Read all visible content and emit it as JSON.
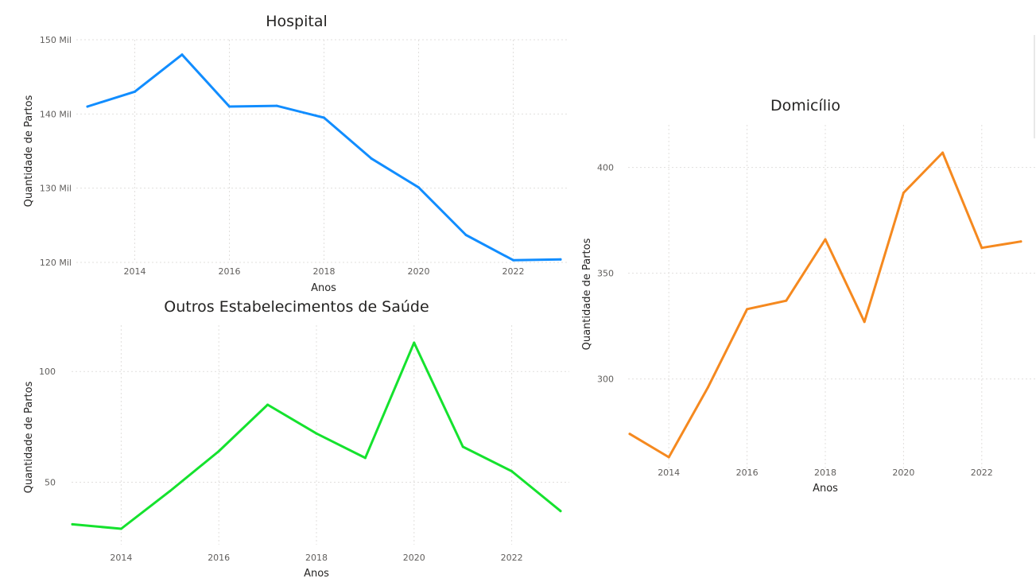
{
  "chart_data": [
    {
      "id": "hospital",
      "type": "line",
      "title": "Hospital",
      "xlabel": "Anos",
      "ylabel": "Quantidade de Partos",
      "x": [
        2013,
        2014,
        2015,
        2016,
        2017,
        2018,
        2019,
        2020,
        2021,
        2022,
        2023
      ],
      "series": [
        {
          "values": [
            141000,
            143000,
            148000,
            141000,
            141100,
            139500,
            134000,
            130100,
            123700,
            120300,
            120400
          ]
        }
      ],
      "ylim": [
        120000,
        150000
      ],
      "yticks": [
        120000,
        130000,
        140000,
        150000
      ],
      "ytick_labels": [
        "120 Mil",
        "130 Mil",
        "140 Mil",
        "150 Mil"
      ],
      "xticks": [
        2014,
        2016,
        2018,
        2020,
        2022
      ],
      "xtick_labels": [
        "2014",
        "2016",
        "2018",
        "2020",
        "2022"
      ],
      "color": "#118DFF",
      "grid": true
    },
    {
      "id": "outros",
      "type": "line",
      "title": "Outros Estabelecimentos de Saúde",
      "xlabel": "Anos",
      "ylabel": "Quantidade de Partos",
      "x": [
        2013,
        2014,
        2015,
        2016,
        2017,
        2018,
        2019,
        2020,
        2021,
        2022,
        2023
      ],
      "series": [
        {
          "values": [
            31,
            29,
            46,
            64,
            85,
            72,
            61,
            113,
            66,
            55,
            37
          ]
        }
      ],
      "ylim": [
        29,
        113
      ],
      "yticks": [
        50,
        100
      ],
      "ytick_labels": [
        "50",
        "100"
      ],
      "xticks": [
        2014,
        2016,
        2018,
        2020,
        2022
      ],
      "xtick_labels": [
        "2014",
        "2016",
        "2018",
        "2020",
        "2022"
      ],
      "color": "#15E22E",
      "grid": true
    },
    {
      "id": "domicilio",
      "type": "line",
      "title": "Domicílio",
      "xlabel": "Anos",
      "ylabel": "Quantidade de Partos",
      "x": [
        2013,
        2014,
        2015,
        2016,
        2017,
        2018,
        2019,
        2020,
        2021,
        2022,
        2023
      ],
      "series": [
        {
          "values": [
            274,
            263,
            296,
            333,
            337,
            366,
            327,
            388,
            407,
            362,
            365
          ]
        }
      ],
      "ylim": [
        263,
        407
      ],
      "yticks": [
        300,
        350,
        400
      ],
      "ytick_labels": [
        "300",
        "350",
        "400"
      ],
      "xticks": [
        2014,
        2016,
        2018,
        2020,
        2022
      ],
      "xtick_labels": [
        "2014",
        "2016",
        "2018",
        "2020",
        "2022"
      ],
      "color": "#F5891F",
      "grid": true
    }
  ]
}
